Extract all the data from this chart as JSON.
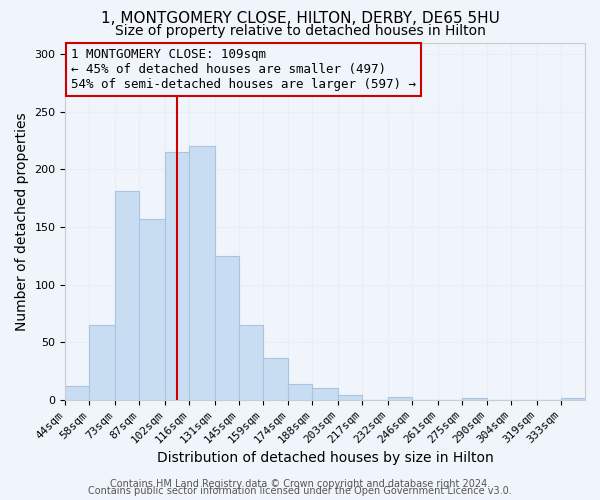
{
  "title": "1, MONTGOMERY CLOSE, HILTON, DERBY, DE65 5HU",
  "subtitle": "Size of property relative to detached houses in Hilton",
  "xlabel": "Distribution of detached houses by size in Hilton",
  "ylabel": "Number of detached properties",
  "bar_labels": [
    "44sqm",
    "58sqm",
    "73sqm",
    "87sqm",
    "102sqm",
    "116sqm",
    "131sqm",
    "145sqm",
    "159sqm",
    "174sqm",
    "188sqm",
    "203sqm",
    "217sqm",
    "232sqm",
    "246sqm",
    "261sqm",
    "275sqm",
    "290sqm",
    "304sqm",
    "319sqm",
    "333sqm"
  ],
  "bar_values": [
    12,
    65,
    181,
    157,
    215,
    220,
    125,
    65,
    36,
    14,
    10,
    4,
    0,
    3,
    0,
    0,
    2,
    0,
    0,
    0,
    2
  ],
  "bar_color": "#c9ddf2",
  "bar_edgecolor": "#a8c4e0",
  "bin_edges": [
    44,
    58,
    73,
    87,
    102,
    116,
    131,
    145,
    159,
    174,
    188,
    203,
    217,
    232,
    246,
    261,
    275,
    290,
    304,
    319,
    333,
    347
  ],
  "vline_x": 109,
  "vline_color": "#cc0000",
  "ylim": [
    0,
    310
  ],
  "yticks": [
    0,
    50,
    100,
    150,
    200,
    250,
    300
  ],
  "annotation_title": "1 MONTGOMERY CLOSE: 109sqm",
  "annotation_line1": "← 45% of detached houses are smaller (497)",
  "annotation_line2": "54% of semi-detached houses are larger (597) →",
  "footer1": "Contains HM Land Registry data © Crown copyright and database right 2024.",
  "footer2": "Contains public sector information licensed under the Open Government Licence v3.0.",
  "background_color": "#f0f4fb",
  "grid_color": "#e8eef8",
  "title_fontsize": 11,
  "subtitle_fontsize": 10,
  "axis_label_fontsize": 10,
  "tick_fontsize": 8,
  "annotation_fontsize": 9,
  "footer_fontsize": 7
}
